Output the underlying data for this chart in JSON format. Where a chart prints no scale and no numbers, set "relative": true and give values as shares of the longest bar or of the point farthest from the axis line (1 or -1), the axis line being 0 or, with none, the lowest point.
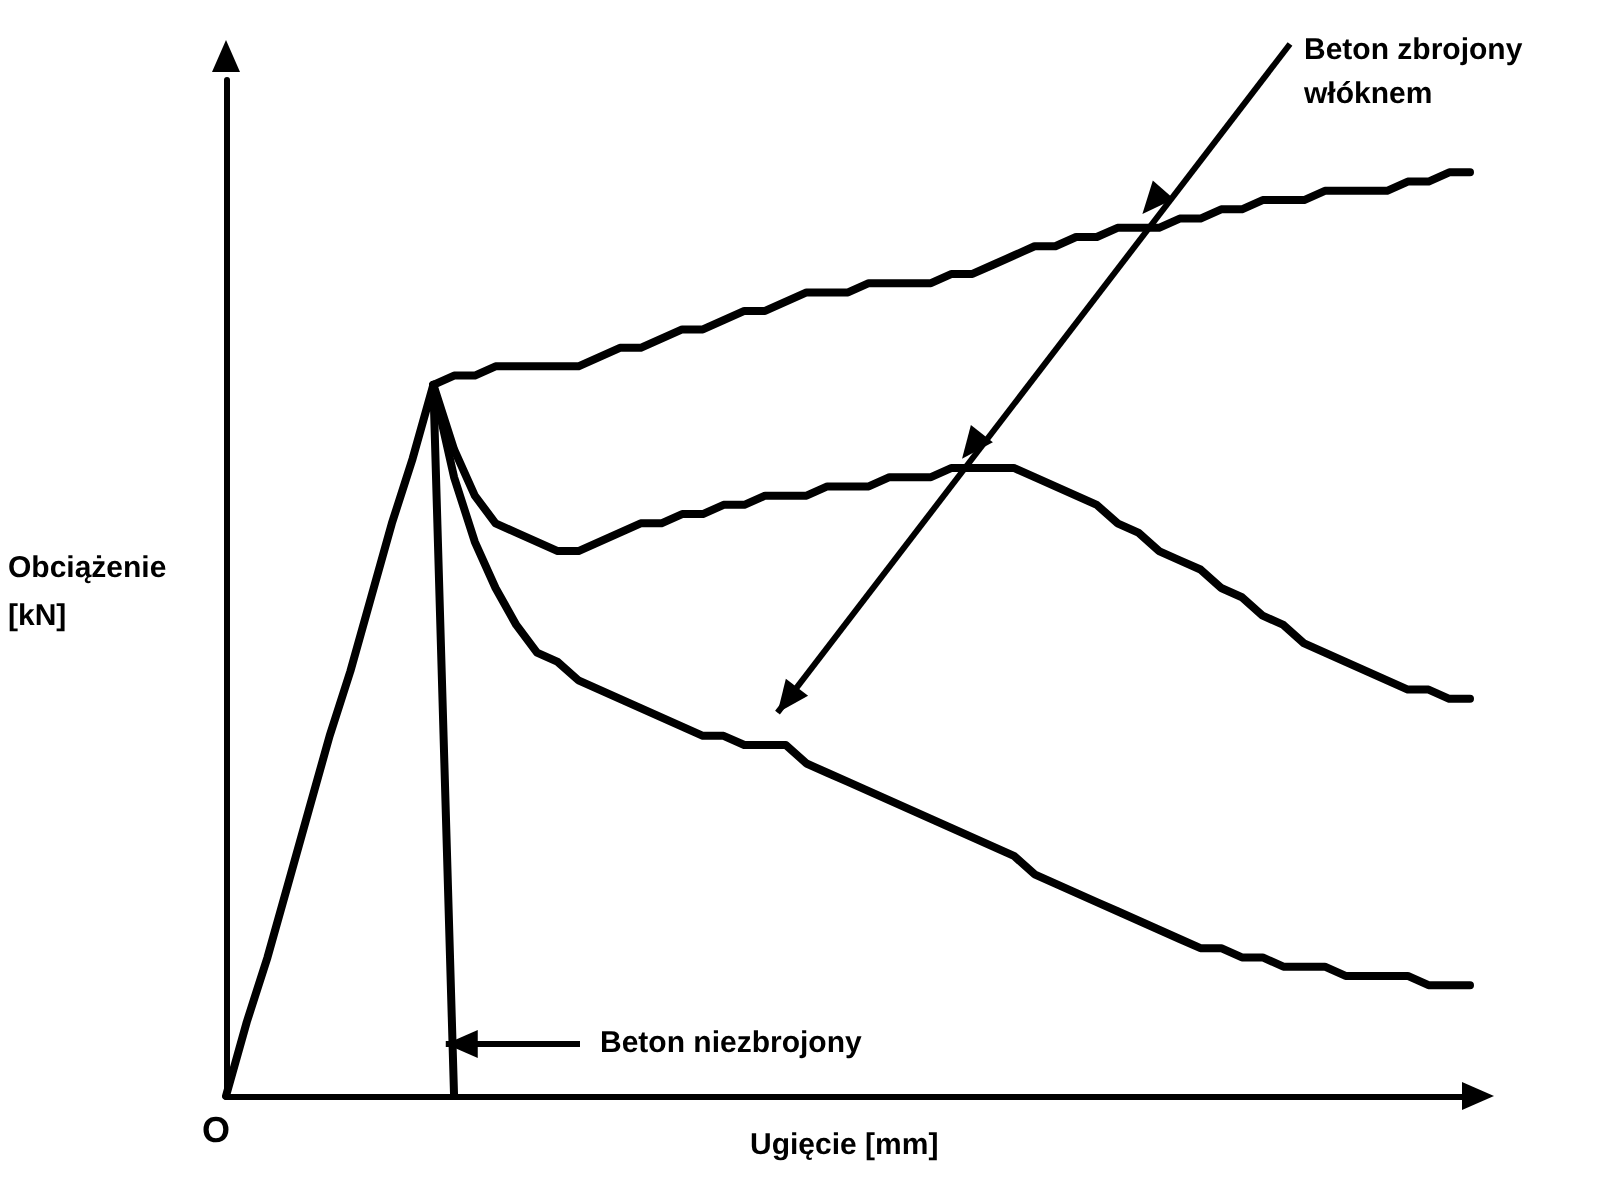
{
  "chart_data": {
    "type": "line",
    "relative": true,
    "xlabel": "Ugięcie [mm]",
    "ylabel": "Obciążenie [kN]",
    "annotations": [
      "Beton zbrojony włóknem",
      "Beton niezbrojony",
      "O"
    ],
    "grid": false,
    "marker": "none",
    "line_style": "solid",
    "categories": [
      null,
      null,
      null,
      null,
      null,
      null,
      null,
      null,
      null,
      null,
      null,
      null,
      null,
      null,
      null,
      null,
      null,
      null,
      null,
      null,
      null,
      null,
      null,
      null,
      null,
      null,
      null,
      null,
      null,
      null,
      null,
      null,
      null,
      null,
      null,
      null,
      null,
      null,
      null,
      null,
      null,
      null,
      null,
      null,
      null,
      null,
      null,
      null,
      null,
      null,
      null,
      null,
      null,
      null,
      null,
      null,
      null,
      null,
      null,
      null,
      null
    ],
    "series": [
      {
        "color": "#000000",
        "values": [
          0,
          0.08,
          0.15,
          0.23,
          0.31,
          0.39,
          0.46,
          0.54,
          0.62,
          0.69,
          0.77,
          0,
          null,
          null,
          null,
          null,
          null,
          null,
          null,
          null,
          null,
          null,
          null,
          null,
          null,
          null,
          null,
          null,
          null,
          null,
          null,
          null,
          null,
          null,
          null,
          null,
          null,
          null,
          null,
          null,
          null,
          null,
          null,
          null,
          null,
          null,
          null,
          null,
          null,
          null,
          null,
          null,
          null,
          null,
          null,
          null,
          null,
          null,
          null,
          null,
          null
        ]
      },
      {
        "color": "#000000",
        "values": [
          null,
          null,
          null,
          null,
          null,
          null,
          null,
          null,
          null,
          null,
          0.77,
          0.78,
          0.78,
          0.79,
          0.79,
          0.79,
          0.79,
          0.79,
          0.8,
          0.81,
          0.81,
          0.82,
          0.83,
          0.83,
          0.84,
          0.85,
          0.85,
          0.86,
          0.87,
          0.87,
          0.87,
          0.88,
          0.88,
          0.88,
          0.88,
          0.89,
          0.89,
          0.9,
          0.91,
          0.92,
          0.92,
          0.93,
          0.93,
          0.94,
          0.94,
          0.94,
          0.95,
          0.95,
          0.96,
          0.96,
          0.97,
          0.97,
          0.97,
          0.98,
          0.98,
          0.98,
          0.98,
          0.99,
          0.99,
          1.0,
          1.0
        ]
      },
      {
        "color": "#000000",
        "values": [
          null,
          null,
          null,
          null,
          null,
          null,
          null,
          null,
          null,
          null,
          0.77,
          0.7,
          0.65,
          0.62,
          0.61,
          0.6,
          0.59,
          0.59,
          0.6,
          0.61,
          0.62,
          0.62,
          0.63,
          0.63,
          0.64,
          0.64,
          0.65,
          0.65,
          0.65,
          0.66,
          0.66,
          0.66,
          0.67,
          0.67,
          0.67,
          0.68,
          0.68,
          0.68,
          0.68,
          0.67,
          0.66,
          0.65,
          0.64,
          0.62,
          0.61,
          0.59,
          0.58,
          0.57,
          0.55,
          0.54,
          0.52,
          0.51,
          0.49,
          0.48,
          0.47,
          0.46,
          0.45,
          0.44,
          0.44,
          0.43,
          0.43
        ]
      },
      {
        "color": "#000000",
        "values": [
          null,
          null,
          null,
          null,
          null,
          null,
          null,
          null,
          null,
          null,
          0.77,
          0.67,
          0.6,
          0.55,
          0.51,
          0.48,
          0.47,
          0.45,
          0.44,
          0.43,
          0.42,
          0.41,
          0.4,
          0.39,
          0.39,
          0.38,
          0.38,
          0.38,
          0.36,
          0.35,
          0.34,
          0.33,
          0.32,
          0.31,
          0.3,
          0.29,
          0.28,
          0.27,
          0.26,
          0.24,
          0.23,
          0.22,
          0.21,
          0.2,
          0.19,
          0.18,
          0.17,
          0.16,
          0.16,
          0.15,
          0.15,
          0.14,
          0.14,
          0.14,
          0.13,
          0.13,
          0.13,
          0.13,
          0.12,
          0.12,
          0.12
        ]
      }
    ]
  }
}
